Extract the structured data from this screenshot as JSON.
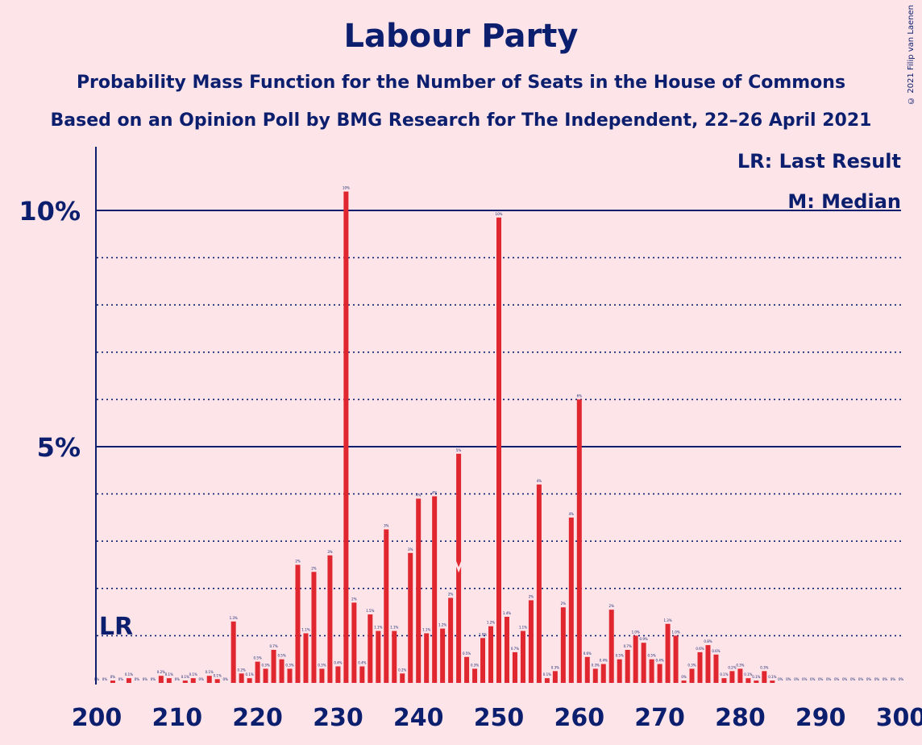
{
  "page": {
    "title": "Labour Party",
    "subtitle1": "Probability Mass Function for the Number of Seats in the House of Commons",
    "subtitle2": "Based on an Opinion Poll by BMG Research for The Independent, 22–26 April 2021",
    "copyright": "© 2021 Filip van Laenen",
    "legend_lr": "LR: Last Result",
    "legend_m": "M: Median",
    "lr_label": "LR"
  },
  "colors": {
    "background": "#fde4e8",
    "bar": "#e0272f",
    "text": "#0c1f6e"
  },
  "chart_data": {
    "type": "bar",
    "title": "Labour Party",
    "xlabel": "",
    "ylabel": "",
    "x_ticks": [
      "200",
      "210",
      "220",
      "230",
      "240",
      "250",
      "260",
      "270",
      "280",
      "290",
      "300"
    ],
    "y_ticks": [
      "5%",
      "10%"
    ],
    "xlim": [
      200,
      300
    ],
    "ylim": [
      0,
      11.2
    ],
    "last_result": 202,
    "median": 245,
    "x": [
      200,
      201,
      202,
      203,
      204,
      205,
      206,
      207,
      208,
      209,
      210,
      211,
      212,
      213,
      214,
      215,
      216,
      217,
      218,
      219,
      220,
      221,
      222,
      223,
      224,
      225,
      226,
      227,
      228,
      229,
      230,
      231,
      232,
      233,
      234,
      235,
      236,
      237,
      238,
      239,
      240,
      241,
      242,
      243,
      244,
      245,
      246,
      247,
      248,
      249,
      250,
      251,
      252,
      253,
      254,
      255,
      256,
      257,
      258,
      259,
      260,
      261,
      262,
      263,
      264,
      265,
      266,
      267,
      268,
      269,
      270,
      271,
      272,
      273,
      274,
      275,
      276,
      277,
      278,
      279,
      280,
      281,
      282,
      283,
      284,
      285,
      286,
      287,
      288,
      289,
      290,
      291,
      292,
      293,
      294,
      295,
      296,
      297,
      298,
      299,
      300
    ],
    "values": [
      0,
      0,
      0.05,
      0,
      0.1,
      0,
      0,
      0,
      0.15,
      0.1,
      0,
      0.05,
      0.1,
      0,
      0.15,
      0.08,
      0,
      1.3,
      0.2,
      0.1,
      0.45,
      0.3,
      0.7,
      0.5,
      0.3,
      2.5,
      1.05,
      2.35,
      0.3,
      2.7,
      0.35,
      10.4,
      1.7,
      0.35,
      1.45,
      1.1,
      3.25,
      1.1,
      0.2,
      2.75,
      3.9,
      1.05,
      3.95,
      1.15,
      1.8,
      4.85,
      0.55,
      0.3,
      0.95,
      1.2,
      9.85,
      1.4,
      0.65,
      1.1,
      1.75,
      4.2,
      0.1,
      0.25,
      1.6,
      3.5,
      6,
      0.55,
      0.3,
      0.4,
      1.55,
      0.5,
      0.7,
      1,
      0.85,
      0.5,
      0.4,
      1.25,
      1,
      0.05,
      0.3,
      0.65,
      0.8,
      0.6,
      0.1,
      0.25,
      0.3,
      0.1,
      0.05,
      0.25,
      0.05,
      0,
      0,
      0,
      0,
      0,
      0,
      0,
      0,
      0,
      0,
      0,
      0,
      0,
      0,
      0,
      0
    ],
    "labels": [
      "0%",
      "0%",
      "0%",
      "0%",
      "0.1%",
      "0%",
      "0%",
      "0%",
      "0.2%",
      "0.1%",
      "0%",
      "0.1%",
      "0.1%",
      "0%",
      "0.1%",
      "0.1%",
      "0%",
      "1.3%",
      "0.2%",
      "0.1%",
      "0.5%",
      "0.3%",
      "0.7%",
      "0.5%",
      "0.3%",
      "2%",
      "1.1%",
      "2%",
      "0.3%",
      "3%",
      "0.4%",
      "10%",
      "2%",
      "0.4%",
      "1.5%",
      "1.1%",
      "3%",
      "1.1%",
      "0.2%",
      "3%",
      "4%",
      "1.1%",
      "4%",
      "1.2%",
      "2%",
      "5%",
      "0.5%",
      "0.3%",
      "1.0%",
      "1.2%",
      "10%",
      "1.4%",
      "0.7%",
      "1.1%",
      "2%",
      "4%",
      "0.1%",
      "0.3%",
      "2%",
      "4%",
      "6%",
      "0.6%",
      "0.3%",
      "0.4%",
      "2%",
      "0.5%",
      "0.7%",
      "1.0%",
      "0.9%",
      "0.5%",
      "0.4%",
      "1.3%",
      "1.0%",
      "0%",
      "0.3%",
      "0.6%",
      "0.8%",
      "0.6%",
      "0.1%",
      "0.2%",
      "0.3%",
      "0.1%",
      "0.1%",
      "0.3%",
      "0.1%",
      "0%",
      "0%",
      "0%",
      "0%",
      "0%",
      "0%",
      "0%",
      "0%",
      "0%",
      "0%",
      "0%",
      "0%",
      "0%",
      "0%",
      "0%",
      "0%"
    ]
  }
}
